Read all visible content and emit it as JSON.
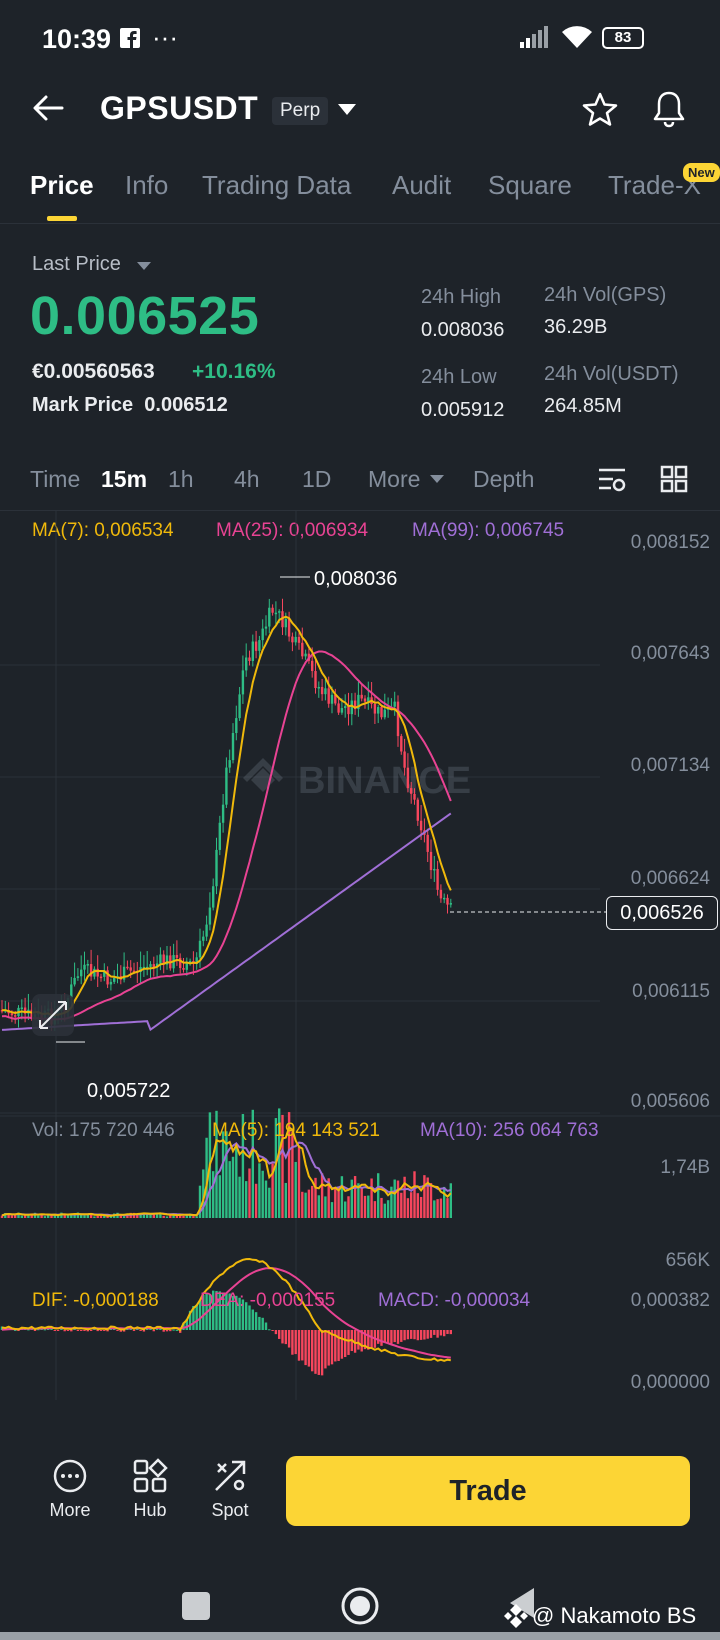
{
  "status": {
    "time": "10:39",
    "battery": "83"
  },
  "header": {
    "pair": "GPSUSDT",
    "badge": "Perp"
  },
  "tabs": [
    {
      "label": "Price",
      "active": true
    },
    {
      "label": "Info"
    },
    {
      "label": "Trading Data"
    },
    {
      "label": "Audit"
    },
    {
      "label": "Square"
    },
    {
      "label": "Trade-X"
    }
  ],
  "new_badge": "New",
  "price": {
    "last_label": "Last Price",
    "value": "0.006525",
    "euro": "€0.00560563",
    "change": "+10.16%",
    "mark_label": "Mark Price",
    "mark_value": "0.006512"
  },
  "stats": {
    "high_label": "24h High",
    "high_value": "0.008036",
    "low_label": "24h Low",
    "low_value": "0.005912",
    "vol_gps_label": "24h Vol(GPS)",
    "vol_gps_value": "36.29B",
    "vol_usdt_label": "24h Vol(USDT)",
    "vol_usdt_value": "264.85M"
  },
  "intervals": {
    "time": "Time",
    "m15": "15m",
    "h1": "1h",
    "h4": "4h",
    "d1": "1D",
    "more": "More",
    "depth": "Depth"
  },
  "ma_legend": {
    "ma7": "MA(7): 0,006534",
    "ma25": "MA(25): 0,006934",
    "ma99": "MA(99): 0,006745"
  },
  "price_axis": [
    "0,008152",
    "0,007643",
    "0,007134",
    "0,006624",
    "0,006115",
    "0,005606"
  ],
  "current_price_tag": "0,006526",
  "high_marker": "0,008036",
  "low_marker": "0,005722",
  "watermark": "BINANCE",
  "vol_legend": {
    "vol": "Vol: 175 720 446",
    "ma5": "MA(5): 194 143 521",
    "ma10": "MA(10): 256 064 763"
  },
  "vol_axis": [
    "1,74B",
    "656K"
  ],
  "macd_legend": {
    "dif": "DIF: -0,000188",
    "dea": "DEA: -0,000155",
    "macd": "MACD: -0,000034"
  },
  "macd_axis": [
    "0,000382",
    "0,000000"
  ],
  "bottom": {
    "more": "More",
    "hub": "Hub",
    "spot": "Spot",
    "trade": "Trade"
  },
  "credit": "@ Nakamoto BS",
  "colors": {
    "up": "#2ebd85",
    "down": "#f6465d",
    "accent": "#fcd535",
    "ma7": "#f0b90b",
    "ma25": "#e84393",
    "ma99": "#a06fd6"
  }
}
